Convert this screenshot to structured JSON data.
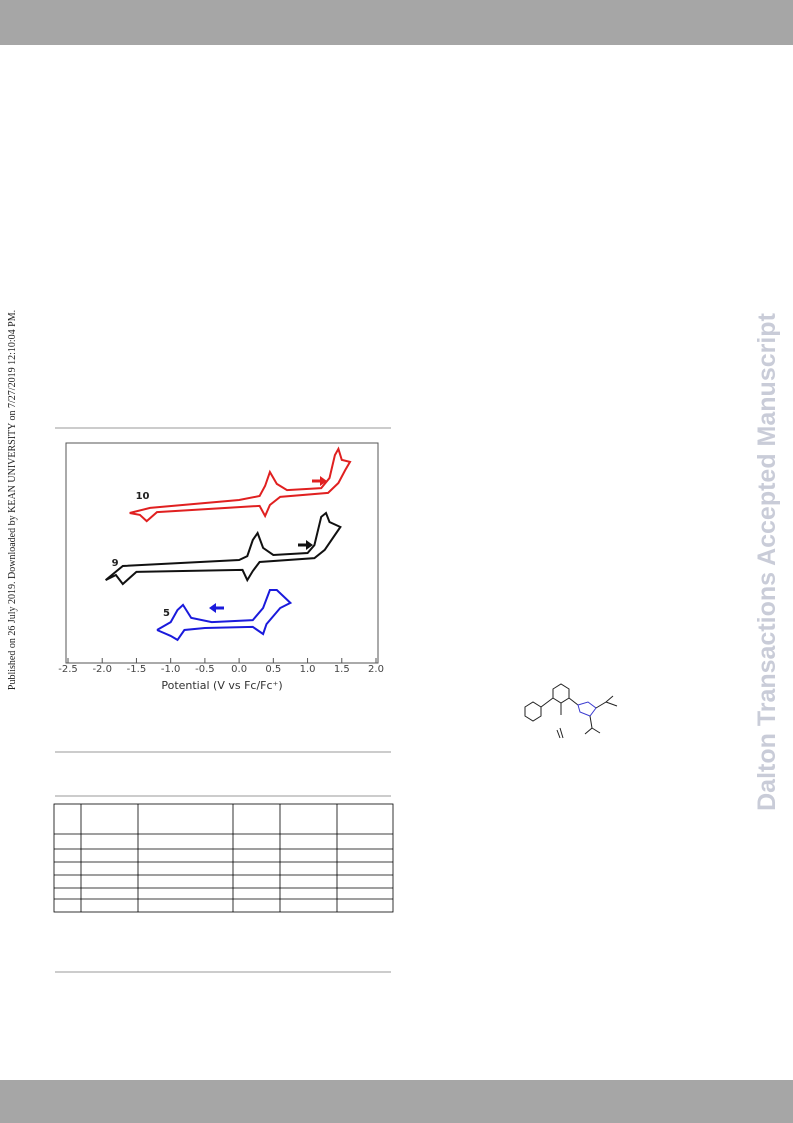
{
  "side_note": "Published on 26 July 2019. Downloaded by KEAN UNIVERSITY on 7/27/2019 12:10:04 PM.",
  "watermark": "Dalton Transactions Accepted Manuscript",
  "chart_data": {
    "type": "line",
    "xlabel": "Potential (V vs Fc/Fc⁺)",
    "xlim": [
      -2.5,
      2.0
    ],
    "xticks": [
      {
        "value": -2.5,
        "label": "-2.5"
      },
      {
        "value": -2.0,
        "label": "-2.0"
      },
      {
        "value": -1.5,
        "label": "-1.5"
      },
      {
        "value": -1.0,
        "label": "-1.0"
      },
      {
        "value": -0.5,
        "label": "-0.5"
      },
      {
        "value": 0.0,
        "label": "0.0"
      },
      {
        "value": 0.5,
        "label": "0.5"
      },
      {
        "value": 1.0,
        "label": "1.0"
      },
      {
        "value": 1.5,
        "label": "1.5"
      },
      {
        "value": 2.0,
        "label": "2.0"
      }
    ],
    "ylim": [
      0,
      100
    ],
    "series": [
      {
        "name": "10",
        "color": "#e02020",
        "x": [
          -1.6,
          -1.3,
          0.0,
          0.3,
          0.38,
          0.45,
          0.55,
          0.7,
          1.2,
          1.32,
          1.4,
          1.45,
          1.5,
          1.62,
          1.55,
          1.45,
          1.3,
          0.6,
          0.45,
          0.38,
          0.3,
          -1.2,
          -1.35,
          -1.45,
          -1.6
        ],
        "values": [
          68.2,
          70.5,
          74.1,
          75.9,
          80.5,
          86.8,
          81.4,
          78.6,
          79.5,
          84.1,
          94.5,
          97.3,
          92.3,
          91.4,
          87.7,
          81.8,
          77.3,
          75.5,
          71.8,
          66.8,
          71.4,
          68.6,
          64.5,
          67.3,
          68.2
        ]
      },
      {
        "name": "9",
        "color": "#111111",
        "x": [
          -1.95,
          -1.7,
          0.0,
          0.12,
          0.2,
          0.27,
          0.35,
          0.5,
          1.0,
          1.1,
          1.2,
          1.27,
          1.32,
          1.48,
          1.4,
          1.25,
          1.1,
          0.3,
          0.2,
          0.12,
          0.05,
          -1.5,
          -1.7,
          -1.8,
          -1.95
        ],
        "values": [
          37.7,
          44.1,
          46.8,
          48.6,
          55.9,
          59.1,
          52.3,
          49.1,
          50.0,
          53.6,
          66.4,
          68.2,
          64.1,
          61.8,
          58.2,
          51.4,
          47.7,
          45.9,
          41.8,
          37.7,
          42.3,
          41.4,
          35.9,
          40.0,
          37.7
        ]
      },
      {
        "name": "5",
        "color": "#1a1adc",
        "x": [
          -1.2,
          -1.0,
          -0.9,
          -0.82,
          -0.7,
          -0.4,
          0.2,
          0.35,
          0.45,
          0.55,
          0.75,
          0.6,
          0.4,
          0.35,
          0.2,
          -0.5,
          -0.8,
          -0.9,
          -1.0,
          -1.2
        ],
        "values": [
          15.0,
          18.6,
          24.1,
          26.4,
          20.5,
          18.6,
          19.5,
          25.0,
          33.2,
          33.2,
          27.3,
          25.0,
          17.7,
          13.2,
          16.4,
          15.9,
          15.0,
          10.5,
          12.3,
          15.0
        ]
      }
    ]
  }
}
